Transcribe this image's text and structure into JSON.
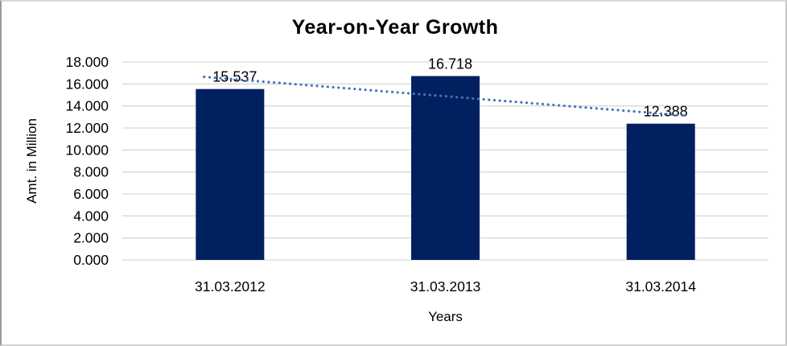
{
  "chart_data": {
    "type": "bar",
    "title": "Year-on-Year Growth",
    "categories": [
      "31.03.2012",
      "31.03.2013",
      "31.03.2014"
    ],
    "values": [
      15.537,
      16.718,
      12.388
    ],
    "data_labels": [
      "15.537",
      "16.718",
      "12.388"
    ],
    "xlabel": "Years",
    "ylabel": "Amt. in Million",
    "ylim": [
      0,
      18
    ],
    "ytick_step": 2,
    "ytick_decimals": 3,
    "grid": true,
    "legend": "none",
    "bar_color": "#002060",
    "gridline_color": "#d9d9d9",
    "trendline": {
      "type": "linear",
      "style": "dotted",
      "color": "#4472C4"
    }
  }
}
